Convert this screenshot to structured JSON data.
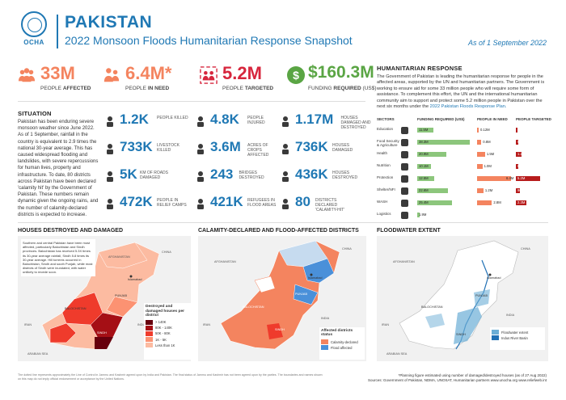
{
  "header": {
    "logo_text": "OCHA",
    "country": "PAKISTAN",
    "title": "2022 Monsoon Floods Humanitarian Response Snapshot",
    "as_of": "As of 1 September 2022"
  },
  "kpis": {
    "affected": {
      "value": "33M",
      "label_pre": "PEOPLE ",
      "label_bold": "AFFECTED",
      "icon": "people-group-icon"
    },
    "in_need": {
      "value": "6.4M*",
      "label_pre": "PEOPLE ",
      "label_bold": "IN NEED",
      "icon": "people-need-icon"
    },
    "targeted": {
      "value": "5.2M",
      "label_pre": "PEOPLE ",
      "label_bold": "TARGETED",
      "icon": "people-target-icon"
    },
    "funding": {
      "value": "$160.3M",
      "label_pre": "FUNDING ",
      "label_bold": "REQUIRED",
      "label_post": " (US$)",
      "icon": "dollar-icon"
    }
  },
  "situation": {
    "title": "SITUATION",
    "text": "Pakistan has been enduring severe monsoon weather since June 2022. As of 1 September, rainfall in the country is equivalent to 2.9 times the national 30-year average. This has caused widespread flooding and landslides, with severe repercussions for human lives, property and infrastructure. To date, 80 districts across Pakistan have been declared 'calamity hit' by the Government of Pakistan. These numbers remain dynamic given the ongoing rains, and the number of calamity-declared districts is expected to increase."
  },
  "stats": [
    {
      "value": "1.2K",
      "label": "PEOPLE KILLED",
      "icon": "person-icon"
    },
    {
      "value": "4.8K",
      "label": "PEOPLE INJURED",
      "icon": "injured-icon"
    },
    {
      "value": "1.17M",
      "label": "HOUSES DAMAGED AND DESTROYED",
      "icon": "house-icon"
    },
    {
      "value": "733K",
      "label": "LIVESTOCK KILLED",
      "icon": "livestock-icon"
    },
    {
      "value": "3.6M",
      "label": "ACRES OF CROPS AFFECTED",
      "icon": "crops-icon"
    },
    {
      "value": "736K",
      "label": "HOUSES DAMAGED",
      "icon": "house-damaged-icon"
    },
    {
      "value": "5K",
      "label": "KM OF ROADS DAMAGED",
      "icon": "road-icon"
    },
    {
      "value": "243",
      "label": "BRIDGES DESTROYED",
      "icon": "bridge-icon"
    },
    {
      "value": "436K",
      "label": "HOUSES DESTROYED",
      "icon": "house-destroyed-icon"
    },
    {
      "value": "472K",
      "label": "PEOPLE IN RELIEF CAMPS",
      "icon": "camp-icon"
    },
    {
      "value": "421K",
      "label": "REFUGEES IN FLOOD AREAS",
      "icon": "refugee-icon"
    },
    {
      "value": "80",
      "label": "DISTRICTS DECLARED 'CALAMITY-HIT'",
      "icon": "location-pin-icon"
    }
  ],
  "response": {
    "title": "HUMANITARIAN RESPONSE",
    "text": "The Government of Pakistan is leading the humanitarian response for people in the affected areas, supported by the UN and humanitarian partners. The Government is working to ensure aid for some 33 million people who will require some form of assistance. To complement this effort, the UN and the international humanitarian community aim to support and protect some 5.2 million people in Pakistan over the next six months under the ",
    "link": "2022 Pakistan Floods Response Plan.",
    "headers": {
      "sectors": "SECTORS",
      "funding": "FUNDING REQUIRED (US$)",
      "pin": "PEOPLE IN NEED",
      "pt": "PEOPLE TARGETED"
    },
    "rows": [
      {
        "sector": "Education",
        "icon": "education-icon",
        "funding": 11.5,
        "funding_label": "11.5M",
        "pin": 0.12,
        "pin_label": "0.12M",
        "pt": 0.27,
        "pt_label": "270K"
      },
      {
        "sector": "Food Security & Agriculture",
        "icon": "food-icon",
        "funding": 38.3,
        "funding_label": "38.3M",
        "pin": 0.8,
        "pin_label": "0.8M",
        "pt": 0.5,
        "pt_label": "500K"
      },
      {
        "sector": "Health",
        "icon": "health-icon",
        "funding": 20.9,
        "funding_label": "20.9M",
        "pin": 1.5,
        "pin_label": "1.5M",
        "pt": 1.2,
        "pt_label": "1.2M"
      },
      {
        "sector": "Nutrition",
        "icon": "nutrition-icon",
        "funding": 10.1,
        "funding_label": "10.1M",
        "pin": 1.0,
        "pin_label": "1.0M",
        "pt": 0.6,
        "pt_label": "600K"
      },
      {
        "sector": "Protection",
        "icon": "protection-icon",
        "funding": 12.5,
        "funding_label": "12.5M",
        "pin": 6.4,
        "pin_label": "6.4M",
        "pt": 5.2,
        "pt_label": "5.2M"
      },
      {
        "sector": "Shelter/NFI",
        "icon": "shelter-icon",
        "funding": 22.6,
        "funding_label": "22.6M",
        "pin": 1.2,
        "pin_label": "1.2M",
        "pt": 0.9,
        "pt_label": "900K"
      },
      {
        "sector": "WASH",
        "icon": "wash-icon",
        "funding": 25.4,
        "funding_label": "25.4M",
        "pin": 2.8,
        "pin_label": "2.8M",
        "pt": 2.3,
        "pt_label": "2.3M"
      },
      {
        "sector": "Logistics",
        "icon": "logistics-icon",
        "funding": 1.9,
        "funding_label": "1.9M",
        "pin": 0,
        "pin_label": "",
        "pt": 0,
        "pt_label": ""
      }
    ]
  },
  "maps": {
    "houses": {
      "title": "HOUSES DESTROYED AND DAMAGED",
      "note": "Southern and central Pakistan have been most affected, particularly Balochistan and Sindh provinces. Balochistan has received 5.3X times its 30-year average rainfall, Sindh 5.8 times its 30-year average. Hill torrents occurred in Balochistan, Sindh and south Punjab, while most districts of Sindh were inundated, with water unlikely to recede soon.",
      "legend_title": "Destroyed and damaged houses per district",
      "legend": [
        {
          "label": "> 140K",
          "color": "#67000d"
        },
        {
          "label": "80K - 140K",
          "color": "#a50f15"
        },
        {
          "label": "50K - 80K",
          "color": "#ef3b2c"
        },
        {
          "label": "1K - 5K",
          "color": "#fc9272"
        },
        {
          "label": "Less than 1K",
          "color": "#fcbba1"
        }
      ],
      "labels": [
        "AFGHANISTAN",
        "Islamabad",
        "PUNJAB",
        "BALOCHISTAN",
        "SINDH",
        "INDIA",
        "IRAN",
        "ARABIAN SEA",
        "CHINA"
      ]
    },
    "calamity": {
      "title": "CALAMITY-DECLARED AND FLOOD-AFFECTED DISTRICTS",
      "legend_title": "Affected districts status",
      "legend": [
        {
          "label": "Calamity-declared",
          "color": "#f4845f"
        },
        {
          "label": "Flood affected",
          "color": "#4a90d9"
        }
      ],
      "labels": [
        "AFGHANISTAN",
        "Islamabad",
        "PUNJAB",
        "BALOCHISTAN",
        "SINDH",
        "INDIA",
        "CHINA",
        "IRAN"
      ]
    },
    "flood": {
      "title": "FLOODWATER EXTENT",
      "legend": [
        {
          "label": "Floodwater extent",
          "color": "#6baed6"
        },
        {
          "label": "Indus River Basin",
          "color": "#2171b5"
        }
      ],
      "labels": [
        "AFGHANISTAN",
        "Islamabad",
        "PUNJAB",
        "BALOCHISTAN",
        "SINDH",
        "INDIA",
        "CHINA",
        "IRAN",
        "ARABIAN SEA"
      ]
    }
  },
  "footer": {
    "note": "The dotted line represents approximately the Line of Control in Jammu and Kashmir agreed upon by India and Pakistan. The final status of Jammu and Kashmir has not been agreed upon by the parties. The boundaries and names shown on this map do not imply official endorsement or acceptance by the United Nations.",
    "planning": "*Planning figure estimated using number of damaged/destroyed houses (as of 27 Aug 2022)",
    "sources": "Sources: Government of Pakistan, NDMA, UNOSAT, Humanitarian partners   www.unocha.org   www.reliefweb.int"
  }
}
